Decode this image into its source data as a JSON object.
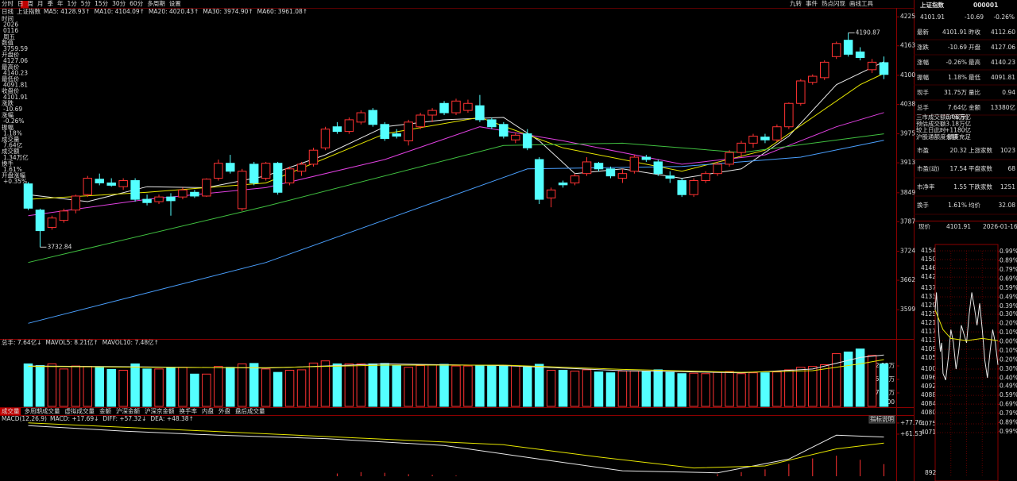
{
  "toolbar": {
    "left": [
      "分时",
      "日",
      "周",
      "月",
      "季",
      "年",
      "1分",
      "5分",
      "15分",
      "30分",
      "60分",
      "多周期",
      "设置"
    ],
    "right": [
      "九转",
      "事件",
      "热点闪现",
      "画线工具"
    ]
  },
  "info_panel": [
    {
      "label": "时间",
      "lines": [
        "2026",
        "0116",
        "周五"
      ],
      "color": "#dddddd"
    },
    {
      "label": "数值",
      "lines": [
        "3759.59"
      ],
      "color": "#ff4040"
    },
    {
      "label": "开盘价",
      "lines": [
        "4127.06"
      ],
      "color": "#ff4040"
    },
    {
      "label": "最高价",
      "lines": [
        "4140.23"
      ],
      "color": "#ff4040"
    },
    {
      "label": "最低价",
      "lines": [
        "4091.81"
      ],
      "color": "#00e000"
    },
    {
      "label": "收盘价",
      "lines": [
        "4101.91"
      ],
      "color": "#00e000"
    },
    {
      "label": "涨跌",
      "lines": [
        "-10.69"
      ],
      "color": "#00e000"
    },
    {
      "label": "涨幅",
      "lines": [
        "-0.26%"
      ],
      "color": "#00e000"
    },
    {
      "label": "振幅",
      "lines": [
        "1.18%"
      ],
      "color": "#ff4040"
    },
    {
      "label": "成交量",
      "lines": [
        "7.64亿"
      ],
      "color": "#ffff40"
    },
    {
      "label": "成交额",
      "lines": [
        "1.34万亿"
      ],
      "color": "#54ffff"
    },
    {
      "label": "换手",
      "lines": [
        "1.61%"
      ],
      "color": "#ff4040"
    },
    {
      "label": "开盘涨幅",
      "lines": [
        "+0.35%"
      ],
      "color": "#ff4040"
    }
  ],
  "tabs": [
    "成交量",
    "多周期成交量",
    "虚拟成交量",
    "金额",
    "沪深金额",
    "沪深京金额",
    "换手率",
    "内盘",
    "外盘",
    "盘后成交量"
  ],
  "button": "指标说明",
  "quote": {
    "name": "上证指数",
    "code": "000001",
    "price": "4101.91",
    "change": "-10.69",
    "pct": "-0.26%",
    "rows": [
      [
        "最新",
        "4101.91",
        "#00e000",
        "昨收",
        "4112.60",
        "#dddddd"
      ],
      [
        "涨跌",
        "-10.69",
        "#00e000",
        "开盘",
        "4127.06",
        "#ff4040"
      ],
      [
        "涨幅",
        "-0.26%",
        "#00e000",
        "最高",
        "4140.23",
        "#ff4040"
      ],
      [
        "振幅",
        "1.18%",
        "#dddddd",
        "最低",
        "4091.81",
        "#00e000"
      ],
      [
        "现手",
        "31.75万",
        "#ffff40",
        "量比",
        "0.94",
        "#ffff40"
      ],
      [
        "总手",
        "7.64亿",
        "#ffff40",
        "金额",
        "13380亿",
        "#ffff40"
      ]
    ],
    "market": [
      [
        "三市成交额(沪深京)",
        "3.06万亿",
        "#ffff40"
      ],
      [
        "预估成交额",
        "3.18万亿",
        "#ffff40"
      ],
      [
        "较上日此时",
        "+1180亿",
        "#ff4040"
      ],
      [
        "沪股通额度余额",
        "额度充足",
        "#dddddd"
      ]
    ],
    "rows2": [
      [
        "市盈",
        "20.32",
        "#ffff40",
        "上涨家数",
        "1023",
        "#ff4040"
      ],
      [
        "市盈(动)",
        "17.54",
        "#ffff40",
        "平盘家数",
        "68",
        "#dddddd"
      ],
      [
        "市净率",
        "1.55",
        "#ffff40",
        "下跌家数",
        "1251",
        "#00e000"
      ],
      [
        "换手",
        "1.61%",
        "#ffff40",
        "均价",
        "32.08",
        "#ffff40"
      ]
    ]
  },
  "chart_data": [
    {
      "type": "candlestick",
      "period": "日线",
      "title": "上证指数",
      "up_color": "#ff3232",
      "down_color": "#54ffff",
      "open": [
        3868,
        3812,
        3775,
        3790,
        3812,
        3845,
        3878,
        3870,
        3862,
        3875,
        3835,
        3830,
        3840,
        3840,
        3850,
        3842,
        3880,
        3912,
        3815,
        3910,
        3880,
        3912,
        3870,
        3895,
        3910,
        3945,
        3990,
        3980,
        4000,
        4025,
        3995,
        3975,
        3960,
        3990,
        4015,
        4040,
        4020,
        4025,
        4035,
        4005,
        3995,
        3962,
        3975,
        3920,
        3838,
        3870,
        3870,
        3890,
        3912,
        3900,
        3880,
        3895,
        3925,
        3915,
        3885,
        3875,
        3845,
        3875,
        3890,
        3910,
        3935,
        3955,
        3968,
        3962,
        3990,
        4040,
        4085,
        4095,
        4140,
        4175,
        4150,
        4112,
        4127.06
      ],
      "high": [
        3872,
        3815,
        3800,
        3815,
        3845,
        3885,
        3890,
        3880,
        3880,
        3880,
        3845,
        3845,
        3848,
        3860,
        3855,
        3880,
        3920,
        3930,
        3900,
        3915,
        3915,
        3915,
        3905,
        3915,
        3945,
        3990,
        4000,
        4010,
        4025,
        4030,
        4000,
        3985,
        4005,
        4020,
        4030,
        4045,
        4050,
        4048,
        4058,
        4010,
        4000,
        3978,
        3985,
        3925,
        3860,
        3875,
        3890,
        3925,
        3915,
        3905,
        3900,
        3930,
        3930,
        3920,
        3895,
        3880,
        3880,
        3895,
        3915,
        3940,
        3960,
        3975,
        3975,
        3995,
        4042,
        4092,
        4102,
        4132,
        4172,
        4190.87,
        4160,
        4135,
        4140.23
      ],
      "low": [
        3812,
        3732.84,
        3770,
        3785,
        3805,
        3840,
        3865,
        3862,
        3855,
        3830,
        3822,
        3825,
        3800,
        3835,
        3838,
        3840,
        3875,
        3890,
        3810,
        3865,
        3875,
        3845,
        3865,
        3885,
        3905,
        3940,
        3975,
        3975,
        3995,
        3990,
        3960,
        3965,
        3950,
        3985,
        4000,
        4015,
        4015,
        4020,
        4000,
        3985,
        3965,
        3955,
        3940,
        3825,
        3818,
        3860,
        3865,
        3885,
        3895,
        3880,
        3870,
        3890,
        3915,
        3885,
        3870,
        3840,
        3840,
        3870,
        3885,
        3905,
        3925,
        3945,
        3955,
        3958,
        3985,
        4035,
        4080,
        4090,
        4135,
        4140,
        4132,
        4105,
        4091.81
      ],
      "close": [
        3816,
        3768,
        3795,
        3810,
        3842,
        3880,
        3870,
        3865,
        3875,
        3835,
        3828,
        3840,
        3832,
        3855,
        3842,
        3878,
        3912,
        3895,
        3895,
        3870,
        3912,
        3850,
        3900,
        3910,
        3940,
        3985,
        3980,
        4005,
        4020,
        3995,
        3965,
        3970,
        4000,
        4015,
        4025,
        4020,
        4045,
        4040,
        4005,
        3990,
        3970,
        3972,
        3945,
        3835,
        3855,
        3866,
        3885,
        3915,
        3900,
        3885,
        3890,
        3925,
        3920,
        3890,
        3880,
        3845,
        3875,
        3890,
        3910,
        3935,
        3955,
        3970,
        3962,
        3990,
        4040,
        4088,
        4098,
        4128,
        4168,
        4145,
        4138,
        4128,
        4101.91
      ],
      "max_label": 4190.87,
      "min_label": 3732.84,
      "series": [
        {
          "name": "MA5: 4128.93↑",
          "color": "#e8e8e8",
          "x": [
            0,
            5,
            10,
            15,
            20,
            25,
            30,
            35,
            40,
            43,
            46,
            50,
            55,
            60,
            64,
            68,
            72
          ],
          "values": [
            3845,
            3830,
            3862,
            3860,
            3885,
            3930,
            3990,
            4005,
            4010,
            3960,
            3890,
            3900,
            3880,
            3900,
            3970,
            4080,
            4128.93
          ]
        },
        {
          "name": "MA10: 4104.09↑",
          "color": "#e6e600",
          "x": [
            0,
            10,
            20,
            30,
            38,
            45,
            55,
            62,
            66,
            70,
            72
          ],
          "values": [
            3835,
            3850,
            3870,
            3975,
            4010,
            3945,
            3895,
            3940,
            4010,
            4080,
            4104.09
          ]
        },
        {
          "name": "MA20: 4020.43↑",
          "color": "#e040e0",
          "x": [
            0,
            10,
            20,
            30,
            38,
            45,
            55,
            62,
            68,
            72
          ],
          "values": [
            3800,
            3835,
            3860,
            3920,
            3990,
            3960,
            3910,
            3930,
            3990,
            4020.43
          ]
        },
        {
          "name": "MA30: 3974.90↑",
          "color": "#40c040",
          "x": [
            0,
            20,
            40,
            50,
            60,
            72
          ],
          "values": [
            3700,
            3820,
            3950,
            3955,
            3935,
            3974.9
          ]
        },
        {
          "name": "MA60: 3961.08↑",
          "color": "#4aa0ff",
          "x": [
            0,
            20,
            42,
            55,
            65,
            72
          ],
          "values": [
            3570,
            3700,
            3900,
            3905,
            3925,
            3961.08
          ]
        }
      ],
      "ylim": [
        3540,
        4244
      ],
      "yticks": [
        4225,
        4163,
        4100,
        4038,
        3975,
        3913,
        3849,
        3787,
        3724,
        3662,
        3599
      ]
    },
    {
      "type": "bar",
      "legend_title": "总手: 7.64亿↓",
      "unit_label": "X100",
      "values": [
        1000,
        960,
        1000,
        880,
        950,
        940,
        930,
        870,
        850,
        1000,
        880,
        880,
        910,
        920,
        760,
        760,
        940,
        920,
        1000,
        1010,
        880,
        800,
        850,
        860,
        1020,
        1070,
        1000,
        1000,
        1000,
        1000,
        1010,
        960,
        920,
        960,
        980,
        990,
        950,
        950,
        960,
        960,
        950,
        950,
        930,
        990,
        850,
        850,
        830,
        860,
        810,
        790,
        830,
        830,
        820,
        860,
        800,
        770,
        780,
        770,
        800,
        820,
        770,
        790,
        790,
        810,
        860,
        920,
        940,
        980,
        1240,
        1280,
        1350,
        1200,
        1000
      ],
      "series": [
        {
          "name": "MAVOL5: 8.21亿↑",
          "color": "#e8e8e8",
          "x": [
            0,
            10,
            20,
            30,
            40,
            50,
            60,
            66,
            70,
            72
          ],
          "values": [
            950,
            930,
            900,
            1000,
            960,
            840,
            790,
            880,
            1150,
            1210
          ]
        },
        {
          "name": "MAVOL10: 7.48亿↑",
          "color": "#e6e600",
          "x": [
            0,
            10,
            20,
            30,
            40,
            50,
            60,
            66,
            70,
            72
          ],
          "values": [
            940,
            920,
            910,
            970,
            970,
            870,
            800,
            840,
            1000,
            1100
          ]
        }
      ],
      "ylim": [
        0,
        1400
      ],
      "yticks": [
        {
          "value": 952.55,
          "label": "952.55万"
        },
        {
          "value": 635.03,
          "label": "635.03万"
        },
        {
          "value": 317.52,
          "label": "317.52万"
        }
      ]
    },
    {
      "type": "macd",
      "title": "MACD(12,26,9)",
      "legend": [
        "MACD: +17.69↓",
        "DIFF: +57.32↓",
        "DEA: +48.38↑"
      ],
      "series": [
        {
          "name": "DIFF",
          "color": "#e8e8e8",
          "x": [
            0,
            8,
            16,
            25,
            35,
            43,
            50,
            58,
            64,
            68,
            72
          ],
          "values": [
            74,
            66,
            60,
            55,
            45,
            25,
            8,
            5,
            25,
            60,
            57.32
          ]
        },
        {
          "name": "DEA",
          "color": "#e6e600",
          "x": [
            0,
            10,
            20,
            30,
            40,
            48,
            56,
            62,
            68,
            72
          ],
          "values": [
            78,
            70,
            62,
            54,
            46,
            28,
            12,
            15,
            40,
            48.38
          ]
        }
      ],
      "histogram": {
        "x": [
          26,
          28,
          30,
          32,
          34,
          36,
          58,
          60,
          62,
          64,
          66,
          68,
          70,
          72
        ],
        "values": [
          4,
          6,
          5,
          3,
          2,
          1,
          3,
          6,
          10,
          18,
          26,
          30,
          24,
          17.69
        ]
      },
      "ylim": [
        -7,
        87
      ],
      "yticks": [
        {
          "value": 77.76,
          "label": "+77.76"
        },
        {
          "value": 61.53,
          "label": "+61.53"
        }
      ]
    },
    {
      "type": "line",
      "header": [
        "现价",
        "4101.91",
        "2026-01-16,五"
      ],
      "volume_max": "892",
      "series": [
        {
          "name": "price",
          "color": "#e8e8e8",
          "x": [
            0,
            5,
            10,
            15,
            20,
            25,
            30,
            40,
            50,
            60,
            70,
            80,
            90,
            100,
            110,
            120,
            130,
            140,
            150,
            160,
            170,
            180,
            190,
            200,
            210,
            220,
            230,
            240
          ],
          "values": [
            4127,
            4135,
            4125,
            4115,
            4108,
            4112,
            4098,
            4095,
            4105,
            4118,
            4112,
            4100,
            4108,
            4120,
            4116,
            4112,
            4125,
            4135,
            4128,
            4120,
            4130,
            4118,
            4104,
            4096,
            4108,
            4118,
            4112,
            4101.91
          ]
        },
        {
          "name": "avg",
          "color": "#e6e600",
          "x": [
            0,
            30,
            60,
            120,
            180,
            240
          ],
          "values": [
            4127,
            4118,
            4114,
            4113,
            4114,
            4113
          ]
        }
      ],
      "xlim": [
        0,
        240
      ],
      "ylim": [
        4071,
        4154
      ],
      "yticks": [
        4154,
        4150,
        4146,
        4142,
        4137,
        4133,
        4129,
        4125,
        4121,
        4117,
        4113,
        4109,
        4105,
        4100,
        4096,
        4092,
        4088,
        4084,
        4080,
        4075,
        4071
      ],
      "y2lim": [
        -1.0,
        1.0
      ],
      "y2ticks": [
        {
          "value": 0.99,
          "label": "0.99%"
        },
        {
          "value": 0.89,
          "label": "0.89%"
        },
        {
          "value": 0.79,
          "label": "0.79%"
        },
        {
          "value": 0.69,
          "label": "0.69%"
        },
        {
          "value": 0.59,
          "label": "0.59%"
        },
        {
          "value": 0.49,
          "label": "0.49%"
        },
        {
          "value": 0.39,
          "label": "0.39%"
        },
        {
          "value": 0.3,
          "label": "0.30%"
        },
        {
          "value": 0.2,
          "label": "0.20%"
        },
        {
          "value": 0.1,
          "label": "0.10%"
        },
        {
          "value": 0,
          "label": "0.00%"
        },
        {
          "value": -0.1,
          "label": "0.10%"
        },
        {
          "value": -0.2,
          "label": "0.20%"
        },
        {
          "value": -0.3,
          "label": "0.30%"
        },
        {
          "value": -0.4,
          "label": "0.40%"
        },
        {
          "value": -0.49,
          "label": "0.49%"
        },
        {
          "value": -0.59,
          "label": "0.59%"
        },
        {
          "value": -0.69,
          "label": "0.69%"
        },
        {
          "value": -0.79,
          "label": "0.79%"
        },
        {
          "value": -0.89,
          "label": "0.89%"
        },
        {
          "value": -0.99,
          "label": "0.99%"
        }
      ]
    }
  ]
}
